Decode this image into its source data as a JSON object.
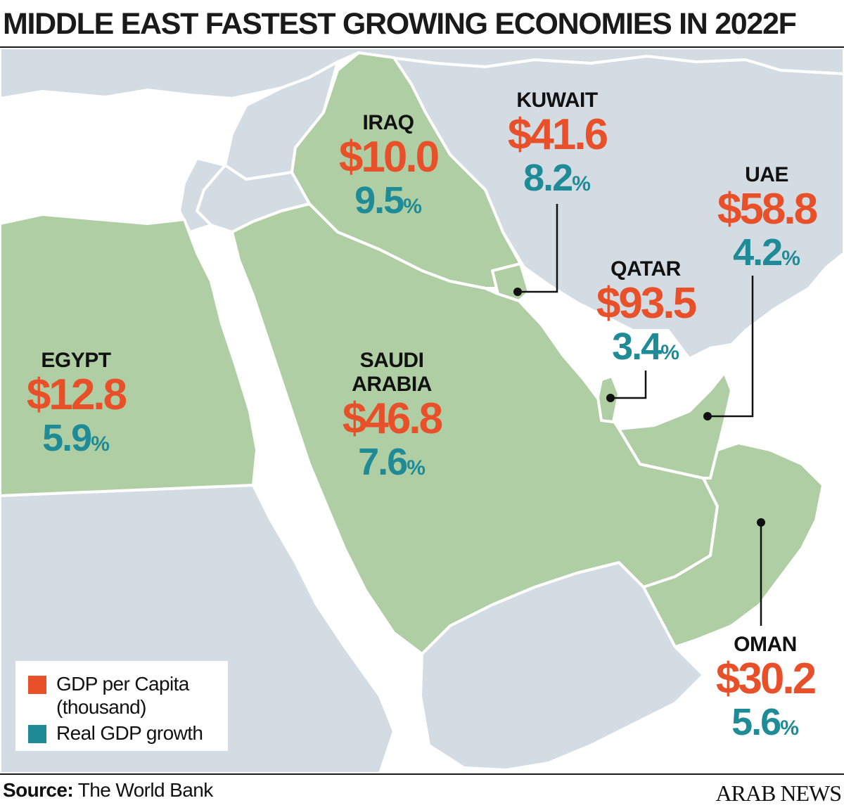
{
  "title": "MIDDLE EAST FASTEST GROWING ECONOMIES IN 2022F",
  "colors": {
    "gdp": "#e8502a",
    "growth": "#1f8b96",
    "highlighted_land": "#afcea3",
    "other_land": "#d3dce3",
    "sea": "#ffffff"
  },
  "countries": [
    {
      "name": "IRAQ",
      "gdp_per_capita": "$10.0",
      "growth": "9.5",
      "growth_unit": "%"
    },
    {
      "name": "KUWAIT",
      "gdp_per_capita": "$41.6",
      "growth": "8.2",
      "growth_unit": "%"
    },
    {
      "name": "UAE",
      "gdp_per_capita": "$58.8",
      "growth": "4.2",
      "growth_unit": "%"
    },
    {
      "name": "QATAR",
      "gdp_per_capita": "$93.5",
      "growth": "3.4",
      "growth_unit": "%"
    },
    {
      "name": "EGYPT",
      "gdp_per_capita": "$12.8",
      "growth": "5.9",
      "growth_unit": "%"
    },
    {
      "name": "SAUDI ARABIA",
      "gdp_per_capita": "$46.8",
      "growth": "7.6",
      "growth_unit": "%"
    },
    {
      "name": "OMAN",
      "gdp_per_capita": "$30.2",
      "growth": "5.6",
      "growth_unit": "%"
    }
  ],
  "legend": {
    "gdp_label": "GDP per Capita (thousand)",
    "growth_label": "Real GDP growth"
  },
  "source": {
    "prefix": "Source:",
    "text": "The World Bank"
  },
  "logo": "ARAB NEWS"
}
